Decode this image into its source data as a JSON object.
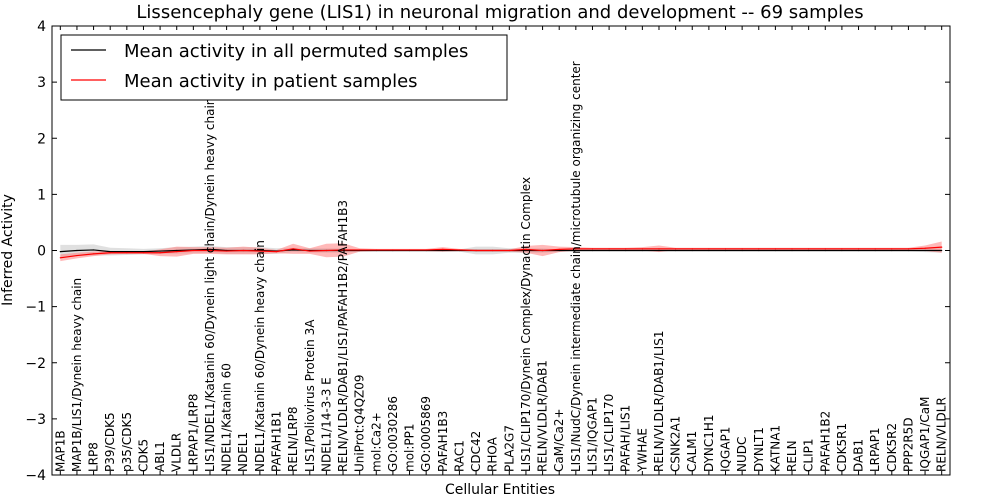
{
  "chart_data": {
    "type": "line",
    "title": "Lissencephaly gene (LIS1) in neuronal migration and development -- 69 samples",
    "xlabel": "Cellular Entities",
    "ylabel": "Inferred Activity",
    "ylim": [
      -4,
      4
    ],
    "yticks": [
      -4,
      -3,
      -2,
      -1,
      0,
      1,
      2,
      3,
      4
    ],
    "ytick_labels": [
      "−4",
      "−3",
      "−2",
      "−1",
      "0",
      "1",
      "2",
      "3",
      "4"
    ],
    "legend_position": "top-left",
    "categories": [
      "MAP1B",
      "MAP1B/LIS1/Dynein heavy chain",
      "LRP8",
      "P39/CDK5",
      "p35/CDK5",
      "CDK5",
      "ABL1",
      "VLDLR",
      "LRPAP1/LRP8",
      "LIS1/NDEL1/Katanin 60/Dynein light chain/Dynein heavy chain",
      "NDEL1/Katanin 60",
      "NDEL1",
      "NDEL1/Katanin 60/Dynein heavy chain",
      "PAFAH1B1",
      "RELN/LRP8",
      "LIS1/Poliovirus Protein 3A",
      "NDEL1/14-3-3 E",
      "RELN/VLDLR/DAB1/LIS1/PAFAH1B2/PAFAH1B3",
      "UniProt:Q4QZ09",
      "mol:Ca2+",
      "GO:0030286",
      "mol:PP1",
      "GO:0005869",
      "PAFAH1B3",
      "RAC1",
      "CDC42",
      "RHOA",
      "PLA2G7",
      "LIS1/CLIP170/Dynein Complex/Dynactin Complex",
      "RELN/VLDLR/DAB1",
      "CaM/Ca2+",
      "LIS1/NudC/Dynein intermediate chain/microtubule organizing center",
      "LIS1/IQGAP1",
      "LIS1/CLIP170",
      "PAFAH/LIS1",
      "YWHAE",
      "RELN/VLDLR/DAB1/LIS1",
      "CSNK2A1",
      "CALM1",
      "DYNC1H1",
      "IQGAP1",
      "NUDC",
      "DYNLT1",
      "KATNA1",
      "RELN",
      "CLIP1",
      "PAFAH1B2",
      "CDK5R1",
      "DAB1",
      "LRPAP1",
      "CDK5R2",
      "PPP2R5D",
      "IQGAP1/CaM",
      "RELN/VLDLR"
    ],
    "series": [
      {
        "name": "Mean activity in all permuted samples",
        "color": "#000000",
        "values": [
          -0.02,
          0.0,
          0.01,
          -0.02,
          -0.02,
          -0.02,
          -0.01,
          0.0,
          0.01,
          0.02,
          0.0,
          0.0,
          0.0,
          -0.01,
          0.01,
          0.0,
          0.0,
          0.0,
          0.0,
          0.0,
          0.0,
          0.0,
          0.0,
          0.0,
          0.0,
          0.0,
          0.0,
          0.0,
          0.0,
          0.0,
          0.0,
          0.0,
          0.0,
          0.0,
          0.0,
          0.0,
          0.0,
          0.0,
          0.0,
          0.0,
          0.0,
          0.0,
          0.0,
          0.0,
          0.0,
          0.0,
          0.0,
          0.0,
          0.0,
          0.0,
          0.0,
          0.0,
          0.0,
          0.0
        ],
        "band_color": "#bbbbbb",
        "band_halfwidth": [
          0.12,
          0.1,
          0.1,
          0.07,
          0.06,
          0.05,
          0.05,
          0.06,
          0.06,
          0.06,
          0.06,
          0.06,
          0.06,
          0.05,
          0.04,
          0.04,
          0.04,
          0.04,
          0.02,
          0.02,
          0.02,
          0.02,
          0.02,
          0.02,
          0.02,
          0.07,
          0.07,
          0.04,
          0.04,
          0.04,
          0.02,
          0.02,
          0.02,
          0.02,
          0.02,
          0.02,
          0.02,
          0.02,
          0.02,
          0.02,
          0.02,
          0.02,
          0.02,
          0.02,
          0.02,
          0.02,
          0.02,
          0.02,
          0.02,
          0.02,
          0.02,
          0.02,
          0.03,
          0.04
        ]
      },
      {
        "name": "Mean activity in patient samples",
        "color": "#ff0000",
        "values": [
          -0.13,
          -0.09,
          -0.06,
          -0.04,
          -0.04,
          -0.04,
          -0.04,
          -0.02,
          0.0,
          0.0,
          -0.01,
          0.0,
          -0.01,
          -0.02,
          0.03,
          -0.01,
          0.0,
          0.01,
          0.01,
          0.01,
          0.01,
          0.01,
          0.01,
          0.02,
          0.01,
          0.0,
          0.0,
          0.0,
          0.02,
          0.0,
          0.02,
          0.03,
          0.03,
          0.03,
          0.03,
          0.03,
          0.03,
          0.03,
          0.03,
          0.03,
          0.03,
          0.03,
          0.03,
          0.03,
          0.03,
          0.03,
          0.03,
          0.03,
          0.03,
          0.03,
          0.03,
          0.03,
          0.04,
          0.06
        ],
        "band_color": "#ff8080",
        "band_halfwidth": [
          0.06,
          0.05,
          0.04,
          0.03,
          0.02,
          0.02,
          0.06,
          0.09,
          0.06,
          0.06,
          0.06,
          0.07,
          0.06,
          0.03,
          0.09,
          0.05,
          0.12,
          0.12,
          0.03,
          0.02,
          0.02,
          0.02,
          0.02,
          0.04,
          0.02,
          0.02,
          0.02,
          0.02,
          0.06,
          0.1,
          0.05,
          0.03,
          0.02,
          0.02,
          0.02,
          0.03,
          0.06,
          0.02,
          0.02,
          0.02,
          0.02,
          0.02,
          0.02,
          0.02,
          0.02,
          0.02,
          0.02,
          0.02,
          0.02,
          0.02,
          0.02,
          0.02,
          0.05,
          0.1
        ]
      }
    ]
  }
}
